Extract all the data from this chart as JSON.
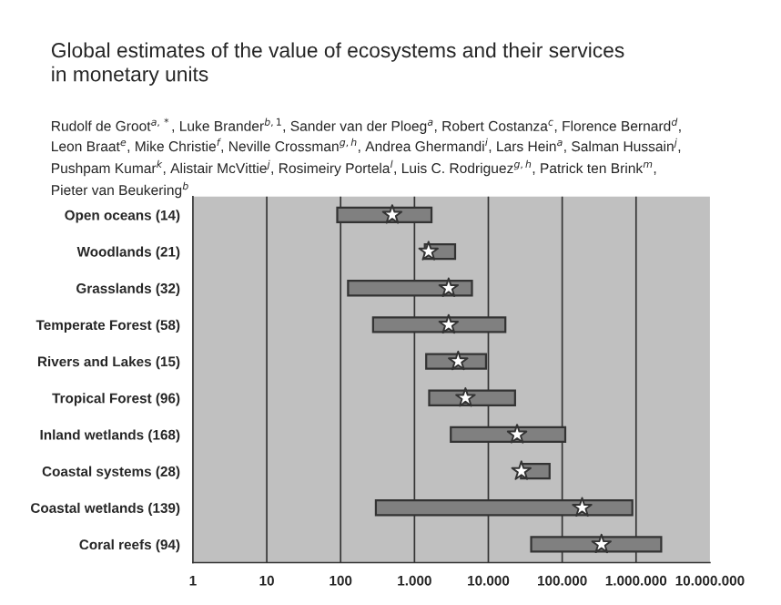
{
  "chart_data": {
    "type": "bar",
    "orientation": "horizontal",
    "title": "Global estimates of the value of ecosystems and their services\nin monetary units",
    "subtitle": "Rudolf de Groot$^{a,*}$, Luke Brander$^{b,1}$, Sander van der Ploeg$^{a}$, Robert Costanza$^{c}$, Florence Bernard$^{d}$,\nLeon Braat$^{e}$, Mike Christie$^{f}$, Neville Crossman$^{g,h}$, Andrea Ghermandi$^{i}$, Lars Hein$^{a}$, Salman Hussain$^{j}$,\nPushpam Kumar$^{k}$, Alistair McVittie$^{j}$, Rosimeiry Portela$^{l}$, Luis C. Rodriguez$^{g,h}$, Patrick ten Brink$^{m}$,\nPieter van Beukering$^{b}$",
    "categories": [
      "Open oceans (14)",
      "Woodlands (21)",
      "Grasslands (32)",
      "Temperate Forest (58)",
      "Rivers and Lakes (15)",
      "Tropical Forest (96)",
      "Inland wetlands (168)",
      "Coastal systems (28)",
      "Coastal wetlands (139)",
      "Coral reefs (94)"
    ],
    "series": [
      {
        "color": "#808080",
        "base": [
          90,
          1380,
          126,
          275,
          1440,
          1580,
          3100,
          27600,
          300,
          38000
        ],
        "values": [
          1610,
          2170,
          5874,
          16725,
          7860,
          21420,
          106900,
          39900,
          889700,
          2152000
        ]
      },
      {
        "type": "scatter",
        "color": "#ffffff",
        "marker": "star",
        "values": [
          500,
          1550,
          2900,
          2900,
          3900,
          4900,
          24500,
          28000,
          186000,
          340000
        ]
      }
    ],
    "log": "x",
    "xlim": [
      1,
      10000000
    ],
    "xticks": [
      1,
      10,
      100,
      {
        "value": 1000,
        "label": "1.000"
      },
      {
        "value": 10000,
        "label": "10.000"
      },
      {
        "value": 100000,
        "label": "100.000"
      },
      {
        "value": 1000000,
        "label": "1.000.000"
      },
      {
        "value": 10000000,
        "label": "10.000.000"
      }
    ],
    "grid": "x"
  }
}
